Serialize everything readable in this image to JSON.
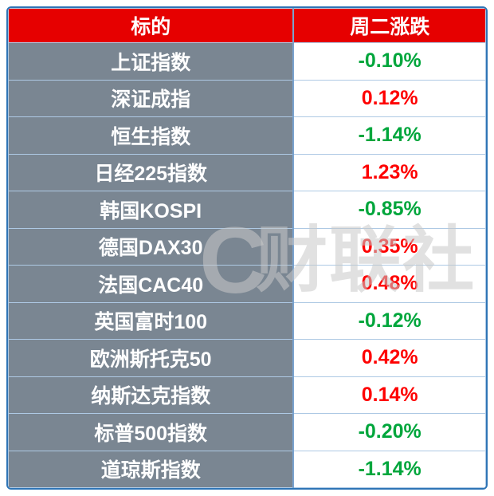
{
  "header": {
    "target": "标的",
    "change": "周二涨跌"
  },
  "watermark": {
    "logo": "C",
    "text": "财联社"
  },
  "colors": {
    "header_bg": "#e60000",
    "name_col_bg": "#7a8692",
    "up": "#fe0000",
    "down": "#00a63c",
    "border": "#2e75b6"
  },
  "rows": [
    {
      "name": "上证指数",
      "change": "-0.10%",
      "trend": "down"
    },
    {
      "name": "深证成指",
      "change": "0.12%",
      "trend": "up"
    },
    {
      "name": "恒生指数",
      "change": "-1.14%",
      "trend": "down"
    },
    {
      "name": "日经225指数",
      "change": "1.23%",
      "trend": "up"
    },
    {
      "name": "韩国KOSPI",
      "change": "-0.85%",
      "trend": "down"
    },
    {
      "name": "德国DAX30",
      "change": "0.35%",
      "trend": "up"
    },
    {
      "name": "法国CAC40",
      "change": "0.48%",
      "trend": "up"
    },
    {
      "name": "英国富时100",
      "change": "-0.12%",
      "trend": "down"
    },
    {
      "name": "欧洲斯托克50",
      "change": "0.42%",
      "trend": "up"
    },
    {
      "name": "纳斯达克指数",
      "change": "0.14%",
      "trend": "up"
    },
    {
      "name": "标普500指数",
      "change": "-0.20%",
      "trend": "down"
    },
    {
      "name": "道琼斯指数",
      "change": "-1.14%",
      "trend": "down"
    }
  ],
  "chart_data": {
    "type": "table",
    "title": "",
    "columns": [
      "标的",
      "周二涨跌"
    ],
    "categories": [
      "上证指数",
      "深证成指",
      "恒生指数",
      "日经225指数",
      "韩国KOSPI",
      "德国DAX30",
      "法国CAC40",
      "英国富时100",
      "欧洲斯托克50",
      "纳斯达克指数",
      "标普500指数",
      "道琼斯指数"
    ],
    "values": [
      -0.1,
      0.12,
      -1.14,
      1.23,
      -0.85,
      0.35,
      0.48,
      -0.12,
      0.42,
      0.14,
      -0.2,
      -1.14
    ],
    "value_unit": "%",
    "color_convention": "red = up, green = down (Chinese market convention)"
  }
}
